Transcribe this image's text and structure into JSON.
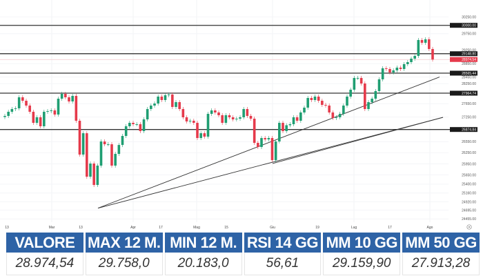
{
  "chart_data": {
    "type": "candlestick",
    "title": "",
    "colors": {
      "up": "#1f9e72",
      "down": "#e53a4b",
      "level_line": "#333333",
      "last_price": "#e53a4b"
    },
    "grid": true,
    "y_axis_position": "right",
    "y_ticks": [
      "30250.00",
      "29750.00",
      "29250.00",
      "28850.00",
      "28450.00",
      "28250.00",
      "27650.00",
      "27250.00",
      "26550.00",
      "26250.00",
      "25950.00",
      "25650.00",
      "25400.00",
      "25160.00",
      "24920.00",
      "24695.00",
      "24455.00"
    ],
    "x_ticks": [
      "13",
      "Mar",
      "13",
      "Apr",
      "17",
      "Mag",
      "15",
      "Giu",
      "19",
      "Lug",
      "17",
      "Ago"
    ],
    "levels": [
      30000.0,
      29148.8,
      28565.44,
      27964.74,
      26874.84
    ],
    "level_labels": [
      "30000.00",
      "29148.80",
      "28565.44",
      "27964.74",
      "26874.84"
    ],
    "last_price": 28974.54,
    "last_price_label": "28974.54",
    "trendlines": [
      {
        "from_price": 24750,
        "to_price": 28450
      },
      {
        "from_price": 25960,
        "to_price": 27240
      }
    ],
    "closes": [
      27282,
      27407,
      27489,
      27510,
      27841,
      27738,
      27593,
      27407,
      27075,
      27241,
      26972,
      27407,
      27427,
      27448,
      27324,
      27800,
      27945,
      27841,
      27717,
      27883,
      27138,
      26201,
      26780,
      25602,
      25958,
      25378,
      25902,
      26556,
      26481,
      26481,
      25902,
      26220,
      26462,
      26706,
      26972,
      27075,
      27034,
      27034,
      26837,
      27179,
      27489,
      27593,
      27655,
      27862,
      27759,
      27903,
      27924,
      27552,
      27696,
      27489,
      27241,
      27117,
      27138,
      27075,
      26650,
      26780,
      26687,
      27345,
      27448,
      27386,
      27303,
      27075,
      27303,
      27241,
      27179,
      27200,
      27241,
      27489,
      27282,
      27200,
      26519,
      26407,
      26650,
      26612,
      26650,
      26051,
      26556,
      27075,
      26837,
      27003,
      27034,
      27241,
      27138,
      27386,
      27531,
      27821,
      27759,
      27862,
      27738,
      27614,
      27593,
      27386,
      27220,
      27241,
      27345,
      27593,
      27862,
      28069,
      28421,
      28421,
      28255,
      27489,
      27696,
      27800,
      28028,
      28380,
      28711,
      28690,
      28587,
      28649,
      28731,
      28690,
      28835,
      28897,
      29000,
      29083,
      29560,
      29477,
      29580,
      29290,
      28974.54
    ],
    "first_open": 27250
  },
  "table": {
    "headers": [
      "VALORE",
      "MAX 12 M.",
      "MIN 12 M.",
      "RSI 14 GG",
      "MM 10 GG",
      "MM 50 GG"
    ],
    "values": [
      "28.974,54",
      "29.758,0",
      "20.183,0",
      "56,61",
      "29.159,90",
      "27.913,28"
    ],
    "header_color": "#2e63a6"
  },
  "settings_icon": "gear-icon"
}
